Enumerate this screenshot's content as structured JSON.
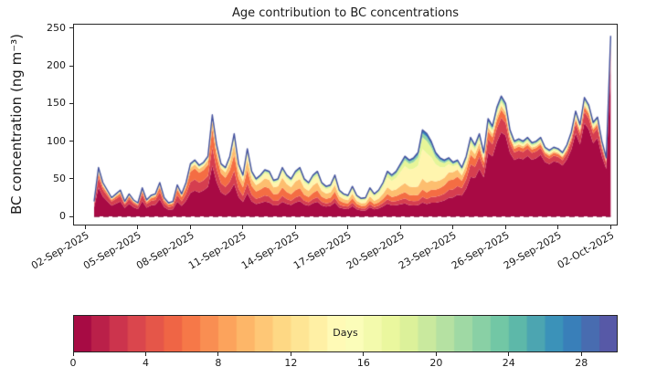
{
  "figure": {
    "title": "Age contribution to BC concentrations",
    "ylabel": "BC concentration (ng m⁻³)",
    "colorbar_label": "Days"
  },
  "chart_data": {
    "type": "area",
    "stacked": true,
    "title": "Age contribution to BC concentrations",
    "xlabel": "",
    "ylabel": "BC concentration (ng m⁻³)",
    "grid": false,
    "legend": "colorbar",
    "ylim": [
      -12,
      256
    ],
    "yticks": [
      0,
      50,
      100,
      150,
      200,
      250
    ],
    "xlim_days": [
      -0.7,
      30.4
    ],
    "x_tick_days": [
      0,
      3,
      6,
      9,
      12,
      15,
      18,
      21,
      24,
      27,
      30
    ],
    "x_tick_labels": [
      "02-Sep-2025",
      "05-Sep-2025",
      "08-Sep-2025",
      "11-Sep-2025",
      "14-Sep-2025",
      "17-Sep-2025",
      "20-Sep-2025",
      "23-Sep-2025",
      "26-Sep-2025",
      "29-Sep-2025",
      "02-Oct-2025"
    ],
    "x_start_day": 0.5,
    "x_step_days": 0.25,
    "total_line": {
      "name": "total BC concentration",
      "color": "#44519e"
    },
    "total_values": [
      20,
      65,
      45,
      35,
      25,
      30,
      35,
      20,
      30,
      22,
      18,
      38,
      22,
      28,
      30,
      45,
      25,
      18,
      20,
      42,
      30,
      45,
      70,
      75,
      68,
      72,
      80,
      135,
      95,
      70,
      65,
      80,
      110,
      70,
      55,
      90,
      60,
      50,
      55,
      62,
      60,
      48,
      50,
      65,
      55,
      50,
      60,
      65,
      50,
      45,
      55,
      60,
      45,
      40,
      42,
      55,
      35,
      30,
      28,
      40,
      28,
      24,
      25,
      38,
      30,
      35,
      45,
      60,
      55,
      60,
      70,
      80,
      75,
      78,
      85,
      115,
      110,
      100,
      85,
      78,
      75,
      78,
      72,
      75,
      65,
      80,
      105,
      95,
      110,
      85,
      130,
      120,
      145,
      160,
      150,
      115,
      100,
      103,
      100,
      105,
      98,
      100,
      105,
      92,
      88,
      92,
      90,
      85,
      95,
      112,
      140,
      122,
      158,
      148,
      125,
      132,
      100,
      78,
      240
    ],
    "zero_line": {
      "y": 0,
      "color": "#8a0c3c",
      "style": "dashed"
    },
    "age_bands": [
      {
        "range_days": [
          0,
          2
        ],
        "color": "#a80a44"
      },
      {
        "range_days": [
          2,
          4
        ],
        "color": "#d53e4f"
      },
      {
        "range_days": [
          4,
          8
        ],
        "color": "#f46d43"
      },
      {
        "range_days": [
          8,
          12
        ],
        "color": "#fdbe6f"
      },
      {
        "range_days": [
          12,
          16
        ],
        "color": "#fff5ae"
      },
      {
        "range_days": [
          16,
          20
        ],
        "color": "#e6f598"
      },
      {
        "range_days": [
          20,
          24
        ],
        "color": "#94d4a4"
      },
      {
        "range_days": [
          24,
          30
        ],
        "color": "#3288bd"
      }
    ],
    "fraction_keyframes": [
      {
        "day": 0.5,
        "fractions": [
          0.6,
          0.2,
          0.08,
          0.04,
          0.03,
          0.02,
          0.02,
          0.01
        ]
      },
      {
        "day": 3.0,
        "fractions": [
          0.55,
          0.22,
          0.1,
          0.05,
          0.03,
          0.02,
          0.02,
          0.01
        ]
      },
      {
        "day": 6.0,
        "fractions": [
          0.45,
          0.2,
          0.2,
          0.07,
          0.03,
          0.02,
          0.02,
          0.01
        ]
      },
      {
        "day": 7.25,
        "fractions": [
          0.5,
          0.18,
          0.18,
          0.08,
          0.03,
          0.01,
          0.01,
          0.01
        ]
      },
      {
        "day": 9.0,
        "fractions": [
          0.35,
          0.15,
          0.2,
          0.15,
          0.08,
          0.03,
          0.02,
          0.02
        ]
      },
      {
        "day": 11.0,
        "fractions": [
          0.3,
          0.12,
          0.18,
          0.2,
          0.12,
          0.04,
          0.02,
          0.02
        ]
      },
      {
        "day": 13.0,
        "fractions": [
          0.32,
          0.1,
          0.15,
          0.18,
          0.15,
          0.05,
          0.03,
          0.02
        ]
      },
      {
        "day": 15.0,
        "fractions": [
          0.35,
          0.12,
          0.15,
          0.15,
          0.12,
          0.06,
          0.03,
          0.02
        ]
      },
      {
        "day": 17.0,
        "fractions": [
          0.3,
          0.1,
          0.12,
          0.15,
          0.2,
          0.08,
          0.03,
          0.02
        ]
      },
      {
        "day": 18.5,
        "fractions": [
          0.2,
          0.08,
          0.1,
          0.15,
          0.3,
          0.1,
          0.04,
          0.03
        ]
      },
      {
        "day": 19.5,
        "fractions": [
          0.15,
          0.06,
          0.08,
          0.12,
          0.35,
          0.15,
          0.05,
          0.04
        ]
      },
      {
        "day": 21.0,
        "fractions": [
          0.35,
          0.15,
          0.18,
          0.14,
          0.1,
          0.04,
          0.02,
          0.02
        ]
      },
      {
        "day": 22.0,
        "fractions": [
          0.5,
          0.16,
          0.12,
          0.08,
          0.06,
          0.04,
          0.02,
          0.02
        ]
      },
      {
        "day": 23.0,
        "fractions": [
          0.65,
          0.14,
          0.08,
          0.04,
          0.03,
          0.02,
          0.02,
          0.02
        ]
      },
      {
        "day": 24.5,
        "fractions": [
          0.75,
          0.1,
          0.05,
          0.03,
          0.02,
          0.02,
          0.02,
          0.01
        ]
      },
      {
        "day": 27.0,
        "fractions": [
          0.8,
          0.08,
          0.04,
          0.02,
          0.02,
          0.02,
          0.01,
          0.01
        ]
      },
      {
        "day": 29.0,
        "fractions": [
          0.78,
          0.1,
          0.04,
          0.02,
          0.02,
          0.02,
          0.01,
          0.01
        ]
      },
      {
        "day": 30.0,
        "fractions": [
          0.82,
          0.09,
          0.03,
          0.02,
          0.01,
          0.01,
          0.01,
          0.01
        ]
      }
    ],
    "colorbar": {
      "label": "Days",
      "min": 0,
      "max": 30,
      "n_segments": 30,
      "ticks": [
        0,
        4,
        8,
        12,
        16,
        20,
        24,
        28
      ],
      "colormap_name": "Spectral",
      "colormap": [
        "#9e0142",
        "#d53e4f",
        "#f46d43",
        "#fdae61",
        "#fee08b",
        "#ffffbf",
        "#e6f598",
        "#abdda4",
        "#66c2a5",
        "#3288bd",
        "#5e4fa2"
      ]
    },
    "axis_color": "#262626",
    "background_color": "#ffffff"
  }
}
